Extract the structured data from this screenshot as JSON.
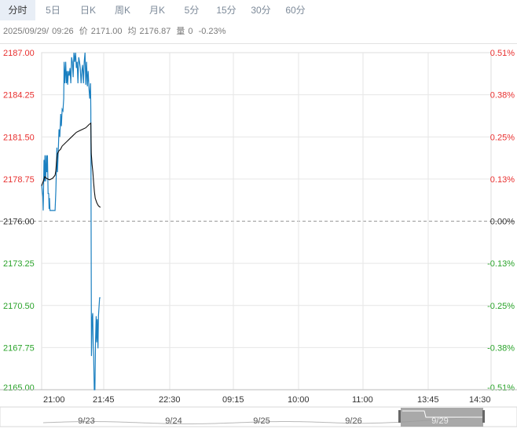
{
  "tabs": [
    {
      "label": "分时",
      "active": true
    },
    {
      "label": "5日",
      "active": false
    },
    {
      "label": "日K",
      "active": false
    },
    {
      "label": "周K",
      "active": false
    },
    {
      "label": "月K",
      "active": false
    },
    {
      "label": "5分",
      "active": false
    },
    {
      "label": "15分",
      "active": false
    },
    {
      "label": "30分",
      "active": false
    },
    {
      "label": "60分",
      "active": false
    }
  ],
  "info": {
    "date": "2025/09/29/",
    "time": "09:26",
    "price_label": "价",
    "price": "2171.00",
    "avg_label": "均",
    "avg": "2176.87",
    "vol_label": "量",
    "vol": "0",
    "change": "-0.23%"
  },
  "colors": {
    "up": "#e8302f",
    "down": "#2aa32a",
    "neutral": "#333333",
    "price_line": "#1a7fc0",
    "avg_line": "#111111",
    "grid": "#e6e6e6",
    "ref_line": "#999999"
  },
  "chart_data": {
    "type": "line",
    "title": "",
    "xlabel": "",
    "ylabel": "",
    "ylim": [
      2165.0,
      2187.0
    ],
    "reference_price": 2176.0,
    "y_ticks_left": [
      "2187.00",
      "2184.25",
      "2181.50",
      "2178.75",
      "2176.00",
      "2173.25",
      "2170.50",
      "2167.75",
      "2165.00"
    ],
    "y_ticks_right": [
      "0.51%",
      "0.38%",
      "0.25%",
      "0.13%",
      "0.00%",
      "-0.13%",
      "-0.25%",
      "-0.38%",
      "-0.51%"
    ],
    "x_ticks": [
      "21:00",
      "21:45",
      "22:30",
      "09:15",
      "10:00",
      "11:00",
      "13:45",
      "14:30"
    ],
    "grid": true,
    "series": [
      {
        "key": "price",
        "values": [
          [
            0,
            2178.4
          ],
          [
            1.5,
            2177.6
          ],
          [
            2,
            2176.7
          ],
          [
            3,
            2180.0
          ],
          [
            3.6,
            2178.6
          ],
          [
            4.2,
            2180.3
          ],
          [
            5,
            2178.6
          ],
          [
            6,
            2180.3
          ],
          [
            6.6,
            2179.2
          ],
          [
            7.4,
            2180.3
          ],
          [
            8.2,
            2177.8
          ],
          [
            9,
            2177.8
          ],
          [
            9.5,
            2176.8
          ],
          [
            10,
            2177.5
          ],
          [
            10.6,
            2176.7
          ],
          [
            17,
            2176.7
          ],
          [
            18,
            2178.0
          ],
          [
            18.6,
            2179.2
          ],
          [
            19.3,
            2180.8
          ],
          [
            20,
            2179.2
          ],
          [
            21,
            2180.5
          ],
          [
            22,
            2182.0
          ],
          [
            23,
            2181.5
          ],
          [
            24.2,
            2183.0
          ],
          [
            25,
            2182.2
          ],
          [
            26,
            2183.3
          ],
          [
            27,
            2183.2
          ],
          [
            28,
            2184.0
          ],
          [
            28.5,
            2186.4
          ],
          [
            29.5,
            2185.0
          ],
          [
            30.5,
            2186.4
          ],
          [
            31.5,
            2185.0
          ],
          [
            32.3,
            2185.8
          ],
          [
            33,
            2184.9
          ],
          [
            34,
            2185.8
          ],
          [
            35,
            2185.5
          ],
          [
            36,
            2186.0
          ],
          [
            37,
            2185.0
          ],
          [
            38,
            2186.7
          ],
          [
            39,
            2186.4
          ],
          [
            40,
            2185.4
          ],
          [
            41,
            2187.0
          ],
          [
            42,
            2186.4
          ],
          [
            43,
            2187.0
          ],
          [
            44,
            2186.0
          ],
          [
            45,
            2186.4
          ],
          [
            46,
            2185.0
          ],
          [
            47,
            2186.7
          ],
          [
            48,
            2186.4
          ],
          [
            49,
            2186.0
          ],
          [
            50,
            2185.0
          ],
          [
            51,
            2185.8
          ],
          [
            52,
            2186.2
          ],
          [
            53,
            2185.0
          ],
          [
            54,
            2186.4
          ],
          [
            55,
            2187.0
          ],
          [
            56,
            2184.9
          ],
          [
            57,
            2186.4
          ],
          [
            58,
            2184.8
          ],
          [
            59,
            2185.8
          ],
          [
            60,
            2184.7
          ],
          [
            61,
            2184.0
          ],
          [
            62,
            2185.0
          ],
          [
            62.4,
            2183.2
          ],
          [
            63.2,
            2167.2
          ],
          [
            64,
            2169.6
          ],
          [
            64.8,
            2170.0
          ],
          [
            65.4,
            2168.0
          ],
          [
            66,
            2167.2
          ],
          [
            66.8,
            2165.0
          ],
          [
            67.6,
            2165.0
          ],
          [
            68.4,
            2168.2
          ],
          [
            69.2,
            2169.8
          ],
          [
            69.8,
            2168.1
          ],
          [
            70.6,
            2169.6
          ],
          [
            71.4,
            2167.7
          ],
          [
            72,
            2169.8
          ],
          [
            72.6,
            2170.3
          ],
          [
            73.5,
            2171.0
          ],
          [
            74.5,
            2171.0
          ]
        ]
      },
      {
        "key": "avg",
        "values": [
          [
            0,
            2178.3
          ],
          [
            2,
            2178.6
          ],
          [
            4,
            2178.9
          ],
          [
            6,
            2178.8
          ],
          [
            10,
            2178.7
          ],
          [
            14,
            2178.8
          ],
          [
            17,
            2179.0
          ],
          [
            18,
            2179.3
          ],
          [
            19,
            2180.0
          ],
          [
            20,
            2180.4
          ],
          [
            22,
            2180.6
          ],
          [
            24,
            2180.7
          ],
          [
            26,
            2180.9
          ],
          [
            28,
            2181.0
          ],
          [
            32,
            2181.2
          ],
          [
            36,
            2181.4
          ],
          [
            40,
            2181.6
          ],
          [
            44,
            2181.8
          ],
          [
            48,
            2181.9
          ],
          [
            52,
            2182.0
          ],
          [
            56,
            2182.1
          ],
          [
            60,
            2182.3
          ],
          [
            62.4,
            2182.4
          ],
          [
            63,
            2180.4
          ],
          [
            64,
            2179.7
          ],
          [
            65,
            2179.2
          ],
          [
            66,
            2178.5
          ],
          [
            67,
            2177.9
          ],
          [
            68,
            2177.5
          ],
          [
            70,
            2177.2
          ],
          [
            72,
            2177.0
          ],
          [
            74.5,
            2176.9
          ]
        ]
      }
    ],
    "total_minutes": 570,
    "overview": {
      "labels": [
        "9/23",
        "9/24",
        "9/25",
        "9/26",
        "9/29"
      ]
    }
  }
}
